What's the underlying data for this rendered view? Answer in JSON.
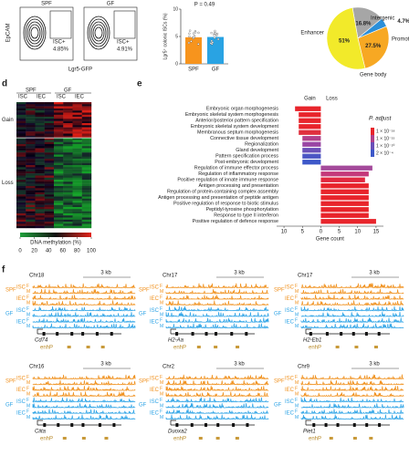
{
  "panels": [
    "d",
    "e",
    "f"
  ],
  "flow": {
    "ylabel": "EpCAM",
    "xlabel": "Lgr5-GFP",
    "plots": [
      {
        "title": "SPF",
        "gate": "ISC+",
        "pct": "4.85%"
      },
      {
        "title": "GF",
        "gate": "ISC+",
        "pct": "4.91%"
      }
    ]
  },
  "chart_data": [
    {
      "type": "bar",
      "ylabel": "Lgr5⁺ colonic ISCs (%)",
      "annotation": "P = 0.49",
      "categories": [
        "SPF",
        "GF"
      ],
      "values": [
        4.85,
        4.91
      ],
      "colors": [
        "#f7941d",
        "#29a3e3"
      ],
      "ylim": [
        0,
        10
      ],
      "yticks": [
        0,
        5,
        10
      ]
    },
    {
      "type": "pie",
      "categories": [
        "Intergenic",
        "Promoter",
        "Gene body",
        "Enhancer"
      ],
      "values": [
        16.8,
        4.7,
        27.5,
        51
      ],
      "value_labels": [
        "16.8%",
        "4.7%",
        "27.5%",
        "51%"
      ],
      "colors": [
        "#a6a6a6",
        "#2b8fd9",
        "#f7a823",
        "#f2ea2a"
      ]
    },
    {
      "type": "hbar",
      "xlabel": "Gene count",
      "categories": [
        "Embryonic organ morphogenesis",
        "Embryonic skeletal system morphogenesis",
        "Anterior/posterior pattern specification",
        "Embryonic skeletal system development",
        "Membranous septum morphogenesis",
        "Connective tissue development",
        "Regionalization",
        "Gland development",
        "Pattern specification process",
        "Post-embryonic development",
        "Regulation of immune effector process",
        "Regulation of inflammatory response",
        "Positive regulation of innate immune response",
        "Antigen processing and presentation",
        "Regulation of protein-containing complex assembly",
        "Antigen processing and presentation of peptide antigen",
        "Positive regulation of response to biotic stimulus",
        "Peptidyl-tyrosine phosphorylation",
        "Response to type II interferon",
        "Positive regulation of defence response"
      ],
      "series": [
        {
          "name": "Gain",
          "direction": "left",
          "values": [
            7,
            6,
            6,
            6,
            6,
            5,
            5,
            5,
            5,
            5,
            null,
            null,
            null,
            null,
            null,
            null,
            null,
            null,
            null,
            null
          ],
          "colors": [
            "#e8242b",
            "#e8242b",
            "#e8242b",
            "#e8242b",
            "#e02f3e",
            "#b0408a",
            "#9a46a4",
            "#6a4fb8",
            "#4b55c4",
            "#3d58c9",
            null,
            null,
            null,
            null,
            null,
            null,
            null,
            null,
            null,
            null
          ]
        },
        {
          "name": "Loss",
          "direction": "right",
          "values": [
            null,
            null,
            null,
            null,
            null,
            null,
            null,
            null,
            null,
            null,
            14,
            13,
            12,
            13,
            13,
            13,
            13,
            13,
            13,
            15
          ],
          "colors": [
            null,
            null,
            null,
            null,
            null,
            null,
            null,
            null,
            null,
            null,
            "#a44a9b",
            "#c4397a",
            "#e2283f",
            "#e8242b",
            "#e8242b",
            "#e8242b",
            "#e8242b",
            "#e8242b",
            "#e8242b",
            "#e8242b"
          ]
        }
      ],
      "xlim": [
        -12,
        17
      ],
      "xticks": [
        {
          "value": -10,
          "label": "10"
        },
        {
          "value": -5,
          "label": "5"
        },
        0,
        5,
        10,
        15
      ],
      "legend": {
        "title": "P. adjust",
        "labels": [
          "1 × 10⁻¹⁸",
          "1 × 10⁻¹⁵",
          "1 × 10⁻¹⁰",
          "2 × 10⁻⁴"
        ],
        "colors": [
          "#e8242b",
          "#b0408a",
          "#6a4fb8",
          "#3d58c9"
        ]
      }
    }
  ],
  "heatmap": {
    "groups": [
      "SPF",
      "GF"
    ],
    "cells": [
      "ISC",
      "IEC"
    ],
    "rows": [
      "Gain",
      "Loss"
    ],
    "legend": {
      "title": "DNA methylation (%)",
      "ticks": [
        0,
        20,
        40,
        60,
        80,
        100
      ]
    }
  },
  "tracks": {
    "groups": [
      "SPF",
      "GF"
    ],
    "cells": [
      "ISC",
      "IEC"
    ],
    "sexes": [
      "F",
      "M"
    ],
    "scale": "3 kb",
    "enh": "enhP",
    "loci": [
      {
        "chr": "Chr18",
        "gene": "Cd74"
      },
      {
        "chr": "Chr17",
        "gene": "H2-Aa"
      },
      {
        "chr": "Chr17",
        "gene": "H2-Eb1"
      },
      {
        "chr": "Chr16",
        "gene": "Ciita"
      },
      {
        "chr": "Chr2",
        "gene": "Duoxa2"
      },
      {
        "chr": "Chr9",
        "gene": "Piet1"
      }
    ]
  }
}
